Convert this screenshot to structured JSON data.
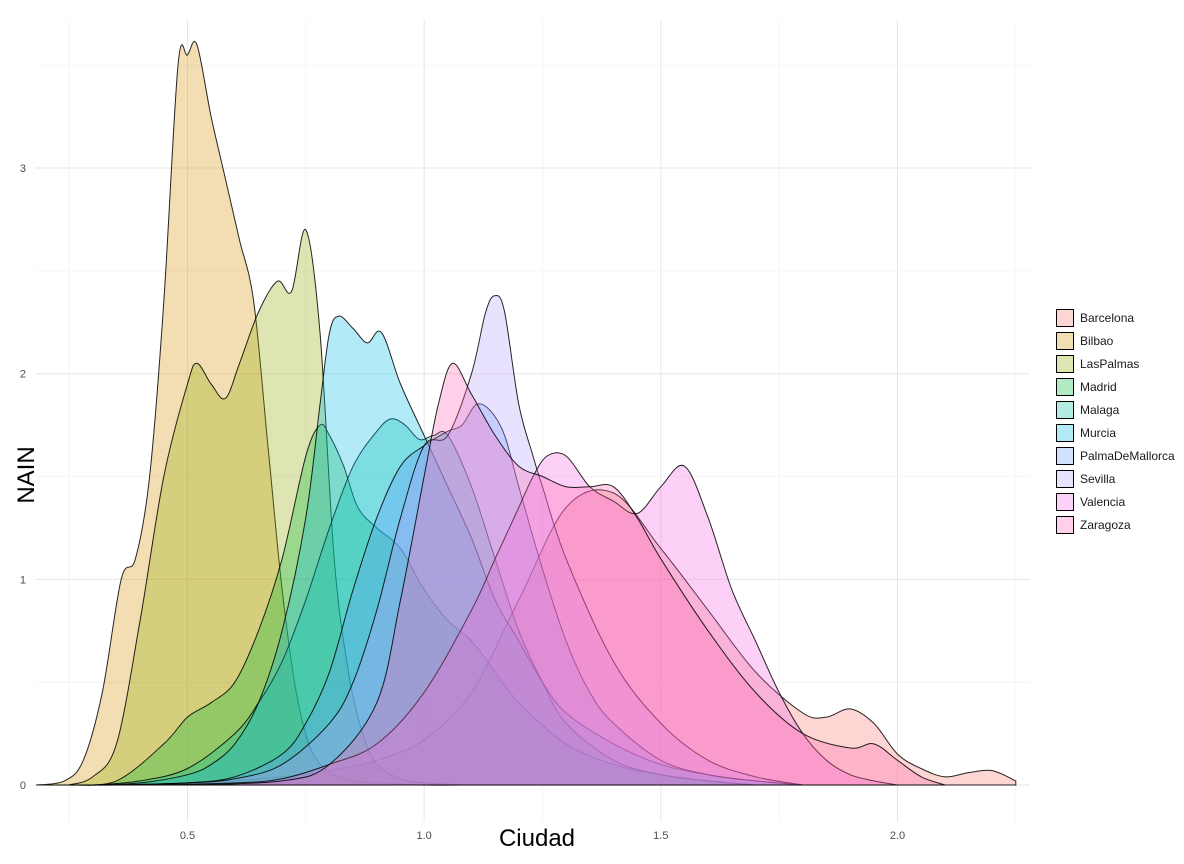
{
  "chart_data": {
    "type": "area",
    "subtype": "density",
    "title": "",
    "xlabel": "Ciudad",
    "ylabel": "NAIN",
    "xlim": [
      0.18,
      2.28
    ],
    "ylim": [
      -0.18,
      3.72
    ],
    "x_ticks": [
      0.5,
      1.0,
      1.5,
      2.0
    ],
    "x_tick_labels": [
      "0.5",
      "1.0",
      "1.5",
      "2.0"
    ],
    "y_ticks": [
      0,
      1,
      2,
      3
    ],
    "y_tick_labels": [
      "0",
      "1",
      "2",
      "3"
    ],
    "grid": true,
    "legend_position": "right",
    "fill_opacity": 0.3,
    "series": [
      {
        "name": "Barcelona",
        "color": "#F8766D",
        "x": [
          0.2,
          0.35,
          0.5,
          0.6,
          0.7,
          0.8,
          0.9,
          1.0,
          1.1,
          1.2,
          1.3,
          1.4,
          1.5,
          1.6,
          1.7,
          1.8,
          1.85,
          1.9,
          1.95,
          2.0,
          2.05,
          2.1,
          2.15,
          2.2,
          2.25
        ],
        "y": [
          0,
          0,
          0.01,
          0.02,
          0.04,
          0.07,
          0.12,
          0.22,
          0.45,
          0.9,
          1.35,
          1.42,
          1.15,
          0.85,
          0.55,
          0.35,
          0.33,
          0.37,
          0.3,
          0.15,
          0.08,
          0.04,
          0.06,
          0.07,
          0.02
        ]
      },
      {
        "name": "Bilbao",
        "color": "#D39200",
        "x": [
          0.18,
          0.24,
          0.28,
          0.32,
          0.36,
          0.39,
          0.42,
          0.45,
          0.48,
          0.5,
          0.52,
          0.55,
          0.58,
          0.61,
          0.64,
          0.67,
          0.7,
          0.73,
          0.76,
          0.8,
          0.85,
          0.9,
          1.0,
          1.1
        ],
        "y": [
          0,
          0.02,
          0.12,
          0.45,
          1.0,
          1.1,
          1.5,
          2.35,
          3.5,
          3.55,
          3.6,
          3.25,
          2.95,
          2.65,
          2.35,
          1.65,
          0.95,
          0.45,
          0.18,
          0.06,
          0.02,
          0.01,
          0,
          0
        ]
      },
      {
        "name": "LasPalmas",
        "color": "#93AA00",
        "x": [
          0.25,
          0.3,
          0.35,
          0.4,
          0.45,
          0.5,
          0.52,
          0.55,
          0.58,
          0.61,
          0.65,
          0.69,
          0.72,
          0.75,
          0.78,
          0.81,
          0.84,
          0.87,
          0.9,
          0.95,
          1.0,
          1.1
        ],
        "y": [
          0,
          0.04,
          0.2,
          0.8,
          1.5,
          1.95,
          2.05,
          1.95,
          1.88,
          2.05,
          2.3,
          2.45,
          2.4,
          2.7,
          2.2,
          1.1,
          0.55,
          0.25,
          0.1,
          0.03,
          0.01,
          0
        ]
      },
      {
        "name": "Madrid",
        "color": "#00BA38",
        "x": [
          0.25,
          0.35,
          0.45,
          0.5,
          0.55,
          0.6,
          0.65,
          0.7,
          0.75,
          0.78,
          0.8,
          0.83,
          0.86,
          0.9,
          0.95,
          1.0,
          1.05,
          1.1,
          1.15,
          1.2,
          1.3,
          1.4,
          1.5,
          1.6,
          1.7
        ],
        "y": [
          0,
          0.02,
          0.2,
          0.33,
          0.4,
          0.5,
          0.75,
          1.1,
          1.6,
          1.75,
          1.7,
          1.55,
          1.35,
          1.25,
          1.15,
          0.95,
          0.8,
          0.7,
          0.55,
          0.4,
          0.2,
          0.1,
          0.05,
          0.02,
          0
        ]
      },
      {
        "name": "Malaga",
        "color": "#00C19F",
        "x": [
          0.3,
          0.4,
          0.5,
          0.6,
          0.65,
          0.7,
          0.75,
          0.8,
          0.85,
          0.9,
          0.93,
          0.96,
          0.99,
          1.02,
          1.05,
          1.1,
          1.15,
          1.2,
          1.25,
          1.3,
          1.4,
          1.5,
          1.6,
          1.7
        ],
        "y": [
          0,
          0.02,
          0.08,
          0.25,
          0.4,
          0.6,
          0.9,
          1.25,
          1.55,
          1.72,
          1.78,
          1.75,
          1.68,
          1.7,
          1.7,
          1.45,
          1.1,
          0.75,
          0.5,
          0.3,
          0.12,
          0.05,
          0.02,
          0
        ]
      },
      {
        "name": "Murcia",
        "color": "#00B9E3",
        "x": [
          0.3,
          0.4,
          0.5,
          0.55,
          0.6,
          0.65,
          0.7,
          0.75,
          0.78,
          0.8,
          0.82,
          0.85,
          0.88,
          0.91,
          0.95,
          1.0,
          1.05,
          1.1,
          1.15,
          1.2,
          1.25,
          1.3,
          1.4,
          1.5,
          1.6,
          1.7,
          1.8
        ],
        "y": [
          0,
          0.01,
          0.05,
          0.1,
          0.2,
          0.4,
          0.75,
          1.3,
          1.85,
          2.2,
          2.28,
          2.22,
          2.15,
          2.2,
          1.95,
          1.7,
          1.45,
          1.2,
          0.9,
          0.7,
          0.5,
          0.35,
          0.2,
          0.1,
          0.05,
          0.02,
          0
        ]
      },
      {
        "name": "PalmaDeMallorca",
        "color": "#619CFF",
        "x": [
          0.35,
          0.5,
          0.6,
          0.7,
          0.75,
          0.8,
          0.85,
          0.9,
          0.95,
          1.0,
          1.05,
          1.08,
          1.11,
          1.14,
          1.17,
          1.2,
          1.25,
          1.3,
          1.35,
          1.4,
          1.5,
          1.6,
          1.7,
          1.8
        ],
        "y": [
          0,
          0.01,
          0.04,
          0.15,
          0.3,
          0.55,
          0.95,
          1.3,
          1.55,
          1.65,
          1.72,
          1.75,
          1.85,
          1.82,
          1.7,
          1.45,
          1.05,
          0.7,
          0.45,
          0.3,
          0.12,
          0.05,
          0.02,
          0
        ]
      },
      {
        "name": "Sevilla",
        "color": "#B79FFF",
        "x": [
          0.35,
          0.5,
          0.6,
          0.7,
          0.8,
          0.85,
          0.9,
          0.95,
          1.0,
          1.05,
          1.1,
          1.13,
          1.15,
          1.17,
          1.2,
          1.23,
          1.25,
          1.3,
          1.4,
          1.5,
          1.6,
          1.7,
          1.8
        ],
        "y": [
          0,
          0.01,
          0.03,
          0.1,
          0.3,
          0.5,
          0.85,
          1.3,
          1.65,
          1.7,
          2.0,
          2.3,
          2.38,
          2.3,
          1.85,
          1.6,
          1.45,
          1.1,
          0.6,
          0.3,
          0.12,
          0.04,
          0
        ]
      },
      {
        "name": "Valencia",
        "color": "#F564E3",
        "x": [
          0.4,
          0.6,
          0.7,
          0.8,
          0.9,
          1.0,
          1.1,
          1.15,
          1.2,
          1.23,
          1.26,
          1.3,
          1.35,
          1.4,
          1.45,
          1.5,
          1.55,
          1.6,
          1.65,
          1.7,
          1.75,
          1.8,
          1.85,
          1.9,
          1.95,
          2.0
        ],
        "y": [
          0,
          0.01,
          0.03,
          0.1,
          0.2,
          0.45,
          0.85,
          1.1,
          1.35,
          1.5,
          1.6,
          1.6,
          1.45,
          1.38,
          1.32,
          1.45,
          1.55,
          1.3,
          0.95,
          0.7,
          0.45,
          0.25,
          0.12,
          0.05,
          0.02,
          0
        ]
      },
      {
        "name": "Zaragoza",
        "color": "#FF64B0",
        "x": [
          0.5,
          0.7,
          0.8,
          0.9,
          0.95,
          1.0,
          1.03,
          1.06,
          1.1,
          1.15,
          1.2,
          1.25,
          1.3,
          1.35,
          1.4,
          1.45,
          1.5,
          1.6,
          1.7,
          1.8,
          1.9,
          1.95,
          2.0,
          2.05,
          2.1
        ],
        "y": [
          0,
          0.02,
          0.1,
          0.4,
          0.9,
          1.5,
          1.85,
          2.05,
          1.9,
          1.7,
          1.55,
          1.5,
          1.45,
          1.45,
          1.45,
          1.3,
          1.1,
          0.75,
          0.45,
          0.25,
          0.18,
          0.2,
          0.12,
          0.04,
          0
        ]
      }
    ]
  }
}
